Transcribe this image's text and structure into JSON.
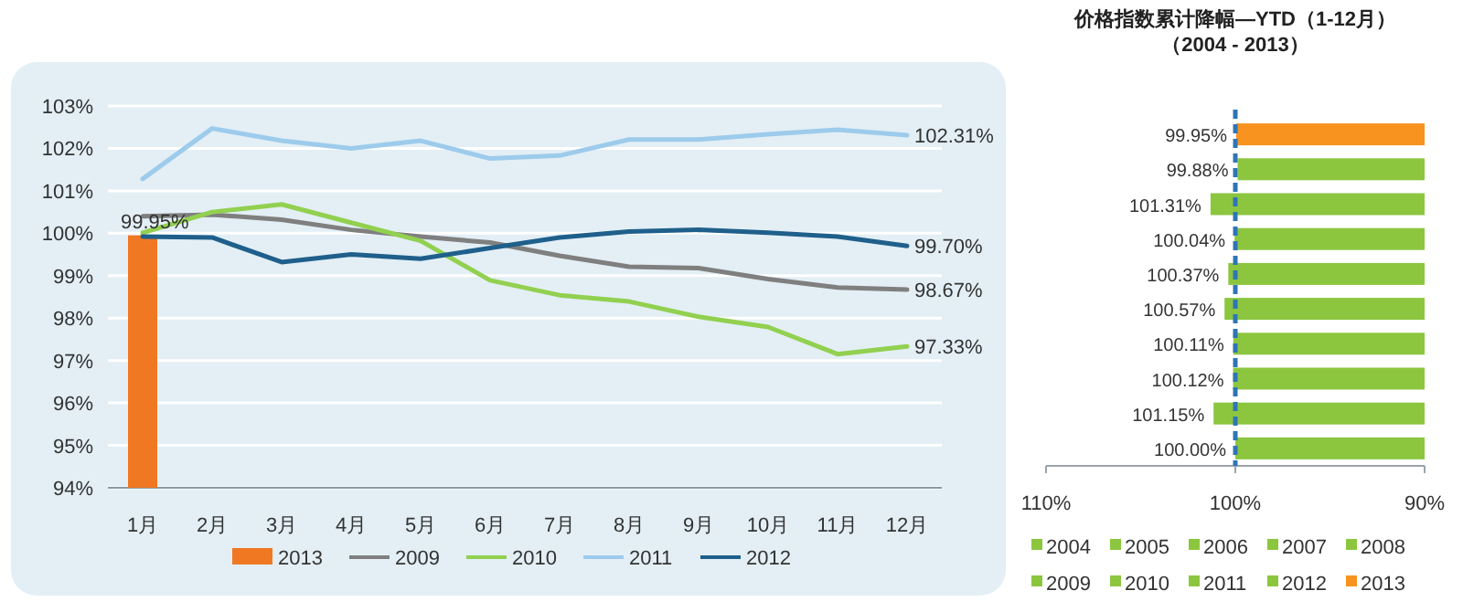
{
  "chart_data": [
    {
      "type": "line",
      "categories": [
        "1月",
        "2月",
        "3月",
        "4月",
        "5月",
        "6月",
        "7月",
        "8月",
        "9月",
        "10月",
        "11月",
        "12月"
      ],
      "ylim": [
        94,
        103
      ],
      "yticks": [
        {
          "value": 94,
          "label": "94%"
        },
        {
          "value": 95,
          "label": "95%"
        },
        {
          "value": 96,
          "label": "96%"
        },
        {
          "value": 97,
          "label": "97%"
        },
        {
          "value": 98,
          "label": "98%"
        },
        {
          "value": 99,
          "label": "99%"
        },
        {
          "value": 100,
          "label": "100%"
        },
        {
          "value": 101,
          "label": "101%"
        },
        {
          "value": 102,
          "label": "102%"
        },
        {
          "value": 103,
          "label": "103%"
        }
      ],
      "grid": "y",
      "legend": "bottom",
      "series": [
        {
          "name": "2013",
          "type": "bar",
          "color": "#f07822",
          "values": [
            99.95,
            null,
            null,
            null,
            null,
            null,
            null,
            null,
            null,
            null,
            null,
            null
          ],
          "value_labels": [
            "99.95%",
            null,
            null,
            null,
            null,
            null,
            null,
            null,
            null,
            null,
            null,
            null
          ]
        },
        {
          "name": "2009",
          "color": "#7f7f7f",
          "values": [
            100.4,
            100.44,
            100.32,
            100.08,
            99.92,
            99.78,
            99.47,
            99.21,
            99.18,
            98.92,
            98.72,
            98.67
          ],
          "value_labels": [
            null,
            null,
            null,
            null,
            null,
            null,
            null,
            null,
            null,
            null,
            null,
            "98.67%"
          ]
        },
        {
          "name": "2010",
          "color": "#92d050",
          "values": [
            100.01,
            100.5,
            100.68,
            100.25,
            99.82,
            98.89,
            98.54,
            98.39,
            98.03,
            97.79,
            97.15,
            97.33
          ],
          "value_labels": [
            null,
            null,
            null,
            null,
            null,
            null,
            null,
            null,
            null,
            null,
            null,
            "97.33%"
          ]
        },
        {
          "name": "2011",
          "color": "#9dcbec",
          "values": [
            101.28,
            102.47,
            102.18,
            102.0,
            102.18,
            101.76,
            101.83,
            102.21,
            102.21,
            102.33,
            102.44,
            102.31
          ],
          "value_labels": [
            null,
            null,
            null,
            null,
            null,
            null,
            null,
            null,
            null,
            null,
            null,
            "102.31%"
          ]
        },
        {
          "name": "2012",
          "color": "#1f5f8b",
          "values": [
            99.92,
            99.9,
            99.32,
            99.5,
            99.4,
            99.65,
            99.9,
            100.04,
            100.08,
            100.01,
            99.92,
            99.7
          ],
          "value_labels": [
            null,
            null,
            null,
            null,
            null,
            null,
            null,
            null,
            null,
            null,
            null,
            "99.70%"
          ]
        }
      ]
    },
    {
      "type": "bar",
      "orientation": "horizontal",
      "title": "价格指数累计降幅—YTD（1-12月）",
      "subtitle": "（2004 - 2013）",
      "categories": [
        null,
        null,
        null,
        null,
        null,
        null,
        null,
        null,
        null,
        null
      ],
      "xlim": [
        110,
        90
      ],
      "xticks": [
        {
          "value": 110,
          "label": "110%"
        },
        {
          "value": 100,
          "label": "100%"
        },
        {
          "value": 90,
          "label": "90%"
        }
      ],
      "ref_lines": [
        {
          "axis": "x",
          "value": 100,
          "color": "#2e75b6",
          "line_style": "dashed"
        }
      ],
      "legend": "bottom",
      "series": [
        {
          "name": "2004",
          "color": "#8cc63f",
          "values": [
            null,
            null,
            null,
            null,
            null,
            null,
            null,
            null,
            null,
            100.0
          ],
          "value_labels": [
            null,
            null,
            null,
            null,
            null,
            null,
            null,
            null,
            null,
            "100.00%"
          ]
        },
        {
          "name": "2005",
          "color": "#8cc63f",
          "values": [
            null,
            null,
            null,
            null,
            null,
            null,
            null,
            null,
            101.15,
            null
          ],
          "value_labels": [
            null,
            null,
            null,
            null,
            null,
            null,
            null,
            null,
            "101.15%",
            null
          ]
        },
        {
          "name": "2006",
          "color": "#8cc63f",
          "values": [
            null,
            null,
            null,
            null,
            null,
            null,
            null,
            100.12,
            null,
            null
          ],
          "value_labels": [
            null,
            null,
            null,
            null,
            null,
            null,
            null,
            "100.12%",
            null,
            null
          ]
        },
        {
          "name": "2007",
          "color": "#8cc63f",
          "values": [
            null,
            null,
            null,
            null,
            null,
            null,
            100.11,
            null,
            null,
            null
          ],
          "value_labels": [
            null,
            null,
            null,
            null,
            null,
            null,
            "100.11%",
            null,
            null,
            null
          ]
        },
        {
          "name": "2008",
          "color": "#8cc63f",
          "values": [
            null,
            null,
            null,
            null,
            null,
            100.57,
            null,
            null,
            null,
            null
          ],
          "value_labels": [
            null,
            null,
            null,
            null,
            null,
            "100.57%",
            null,
            null,
            null,
            null
          ]
        },
        {
          "name": "2009",
          "color": "#8cc63f",
          "values": [
            null,
            null,
            null,
            null,
            100.37,
            null,
            null,
            null,
            null,
            null
          ],
          "value_labels": [
            null,
            null,
            null,
            null,
            "100.37%",
            null,
            null,
            null,
            null,
            null
          ]
        },
        {
          "name": "2010",
          "color": "#8cc63f",
          "values": [
            null,
            null,
            null,
            100.04,
            null,
            null,
            null,
            null,
            null,
            null
          ],
          "value_labels": [
            null,
            null,
            null,
            "100.04%",
            null,
            null,
            null,
            null,
            null,
            null
          ]
        },
        {
          "name": "2011",
          "color": "#8cc63f",
          "values": [
            null,
            null,
            101.31,
            null,
            null,
            null,
            null,
            null,
            null,
            null
          ],
          "value_labels": [
            null,
            null,
            "101.31%",
            null,
            null,
            null,
            null,
            null,
            null,
            null
          ]
        },
        {
          "name": "2012",
          "color": "#8cc63f",
          "values": [
            null,
            99.88,
            null,
            null,
            null,
            null,
            null,
            null,
            null,
            null
          ],
          "value_labels": [
            null,
            "99.88%",
            null,
            null,
            null,
            null,
            null,
            null,
            null,
            null
          ]
        },
        {
          "name": "2013",
          "color": "#f7931e",
          "values": [
            99.95,
            null,
            null,
            null,
            null,
            null,
            null,
            null,
            null,
            null
          ],
          "value_labels": [
            "99.95%",
            null,
            null,
            null,
            null,
            null,
            null,
            null,
            null,
            null
          ]
        }
      ]
    }
  ]
}
